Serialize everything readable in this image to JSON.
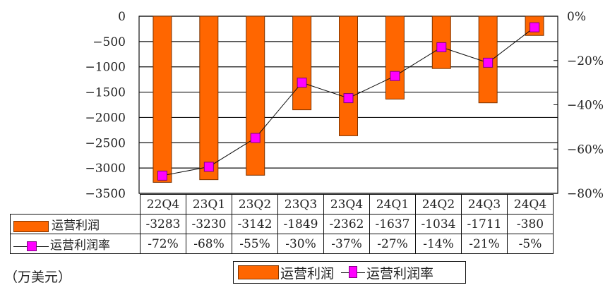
{
  "chart_data": {
    "type": "bar+line",
    "title": "",
    "unit_label": "（万美元）",
    "categories": [
      "22Q4",
      "23Q1",
      "23Q2",
      "23Q3",
      "23Q4",
      "24Q1",
      "24Q2",
      "24Q3",
      "24Q4"
    ],
    "series": [
      {
        "name": "运营利润",
        "type": "bar",
        "axis": "left",
        "color": "#ff6600",
        "values": [
          -3283,
          -3230,
          -3142,
          -1849,
          -2362,
          -1637,
          -1034,
          -1711,
          -380
        ]
      },
      {
        "name": "运营利润率",
        "type": "line",
        "axis": "right",
        "color": "#ff00ff",
        "values": [
          -72,
          -68,
          -55,
          -30,
          -37,
          -27,
          -14,
          -21,
          -5
        ],
        "value_labels": [
          "-72%",
          "-68%",
          "-55%",
          "-30%",
          "-37%",
          "-27%",
          "-14%",
          "-21%",
          "-5%"
        ]
      }
    ],
    "left_axis": {
      "ylim": [
        -3500,
        0
      ],
      "ticks": [
        "0",
        "-500",
        "-1000",
        "-1500",
        "-2000",
        "-2500",
        "-3000",
        "-3500"
      ],
      "tick_values": [
        0,
        -500,
        -1000,
        -1500,
        -2000,
        -2500,
        -3000,
        -3500
      ]
    },
    "right_axis": {
      "ylim": [
        -80,
        0
      ],
      "ticks": [
        "0%",
        "-20%",
        "-40%",
        "-60%",
        "-80%"
      ],
      "tick_values": [
        0,
        -20,
        -40,
        -60,
        -80
      ]
    },
    "grid": true,
    "legend_position": "bottom",
    "data_table": true
  },
  "table": {
    "header": [
      "22Q4",
      "23Q1",
      "23Q2",
      "23Q3",
      "23Q4",
      "24Q1",
      "24Q2",
      "24Q3",
      "24Q4"
    ],
    "rows": [
      {
        "label": "运营利润",
        "cells": [
          "-3283",
          "-3230",
          "-3142",
          "-1849",
          "-2362",
          "-1637",
          "-1034",
          "-1711",
          "-380"
        ]
      },
      {
        "label": "运营利润率",
        "cells": [
          "-72%",
          "-68%",
          "-55%",
          "-30%",
          "-37%",
          "-27%",
          "-14%",
          "-21%",
          "-5%"
        ]
      }
    ]
  },
  "legend": {
    "bar_label": "运营利润",
    "line_label": "运营利润率"
  },
  "unit": "（万美元）",
  "colors": {
    "bar": "#ff6600",
    "bar_border": "#7a3300",
    "marker": "#ff00ff",
    "marker_border": "#800080",
    "grid": "#111111"
  }
}
